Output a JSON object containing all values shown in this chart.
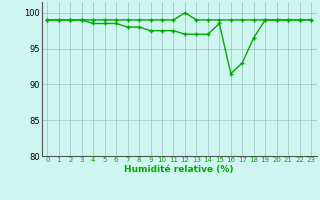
{
  "x": [
    0,
    1,
    2,
    3,
    4,
    5,
    6,
    7,
    8,
    9,
    10,
    11,
    12,
    13,
    14,
    15,
    16,
    17,
    18,
    19,
    20,
    21,
    22,
    23
  ],
  "line1": [
    99,
    99,
    99,
    99,
    99,
    99,
    99,
    99,
    99,
    99,
    99,
    99,
    100,
    99,
    99,
    99,
    99,
    99,
    99,
    99,
    99,
    99,
    99,
    99
  ],
  "line2": [
    99,
    99,
    99,
    99,
    98.5,
    98.5,
    98.5,
    98,
    98,
    97.5,
    97.5,
    97.5,
    97,
    97,
    97,
    98.5,
    91.5,
    93,
    96.5,
    99,
    99,
    99,
    99,
    99
  ],
  "line_color": "#00aa00",
  "bg_color": "#cef5f0",
  "grid_color": "#9dbfbf",
  "xlabel": "Humidité relative (%)",
  "ylim": [
    80,
    101.5
  ],
  "xlim": [
    -0.5,
    23.5
  ],
  "yticks": [
    80,
    85,
    90,
    95,
    100
  ],
  "xtick_labels": [
    "0",
    "1",
    "2",
    "3",
    "4",
    "5",
    "6",
    "7",
    "8",
    "9",
    "10",
    "11",
    "12",
    "13",
    "14",
    "15",
    "16",
    "17",
    "18",
    "19",
    "20",
    "21",
    "22",
    "23"
  ],
  "marker": "+",
  "markersize": 3.5,
  "linewidth": 1.0
}
